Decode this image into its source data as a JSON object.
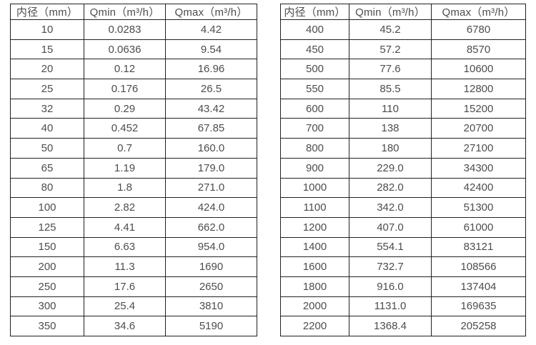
{
  "page": {
    "background_color": "#ffffff",
    "text_color": "#4d4d4d",
    "border_color": "#212121"
  },
  "tables": [
    {
      "name": "flow-range-table-dn10-350",
      "headers": [
        "内径（mm）",
        "Qmin（m³/h）",
        "Qmax（m³/h）"
      ],
      "rows": [
        [
          "10",
          "0.0283",
          "4.42"
        ],
        [
          "15",
          "0.0636",
          "9.54"
        ],
        [
          "20",
          "0.12",
          "16.96"
        ],
        [
          "25",
          "0.176",
          "26.5"
        ],
        [
          "32",
          "0.29",
          "43.42"
        ],
        [
          "40",
          "0.452",
          "67.85"
        ],
        [
          "50",
          "0.7",
          "160.0"
        ],
        [
          "65",
          "1.19",
          "179.0"
        ],
        [
          "80",
          "1.8",
          "271.0"
        ],
        [
          "100",
          "2.82",
          "424.0"
        ],
        [
          "125",
          "4.41",
          "662.0"
        ],
        [
          "150",
          "6.63",
          "954.0"
        ],
        [
          "200",
          "11.3",
          "1690"
        ],
        [
          "250",
          "17.6",
          "2650"
        ],
        [
          "300",
          "25.4",
          "3810"
        ],
        [
          "350",
          "34.6",
          "5190"
        ]
      ]
    },
    {
      "name": "flow-range-table-dn400-2200",
      "headers": [
        "内径（mm）",
        "Qmin（m³/h）",
        "Qmax（m³/h）"
      ],
      "rows": [
        [
          "400",
          "45.2",
          "6780"
        ],
        [
          "450",
          "57.2",
          "8570"
        ],
        [
          "500",
          "77.6",
          "10600"
        ],
        [
          "550",
          "85.5",
          "12800"
        ],
        [
          "600",
          "110",
          "15200"
        ],
        [
          "700",
          "138",
          "20700"
        ],
        [
          "800",
          "180",
          "27100"
        ],
        [
          "900",
          "229.0",
          "34300"
        ],
        [
          "1000",
          "282.0",
          "42400"
        ],
        [
          "1100",
          "342.0",
          "51300"
        ],
        [
          "1200",
          "407.0",
          "61000"
        ],
        [
          "1400",
          "554.1",
          "83121"
        ],
        [
          "1600",
          "732.7",
          "108566"
        ],
        [
          "1800",
          "916.0",
          "137404"
        ],
        [
          "2000",
          "1131.0",
          "169635"
        ],
        [
          "2200",
          "1368.4",
          "205258"
        ]
      ]
    }
  ]
}
